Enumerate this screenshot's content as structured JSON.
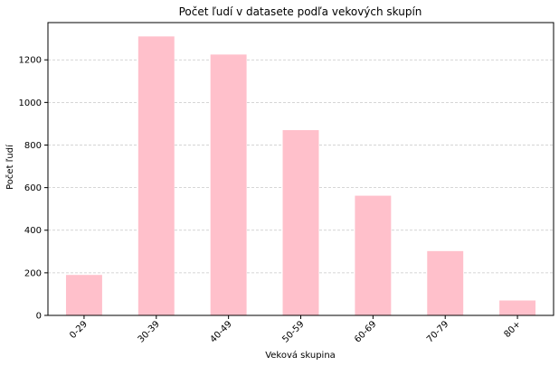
{
  "chart_data": {
    "type": "bar",
    "title": "Počet ľudí v datasete podľa vekových skupín",
    "xlabel": "Veková skupina",
    "ylabel": "Počet ľudí",
    "categories": [
      "0-29",
      "30-39",
      "40-49",
      "50-59",
      "60-69",
      "70-79",
      "80+"
    ],
    "values": [
      190,
      1310,
      1225,
      870,
      562,
      302,
      70
    ],
    "ylim": [
      0,
      1375
    ],
    "yticks": [
      0,
      200,
      400,
      600,
      800,
      1000,
      1200
    ],
    "grid": "y-dashed",
    "legend": "none",
    "bar_color": "#ffc0cb",
    "grid_color": "#c8c8c8"
  }
}
